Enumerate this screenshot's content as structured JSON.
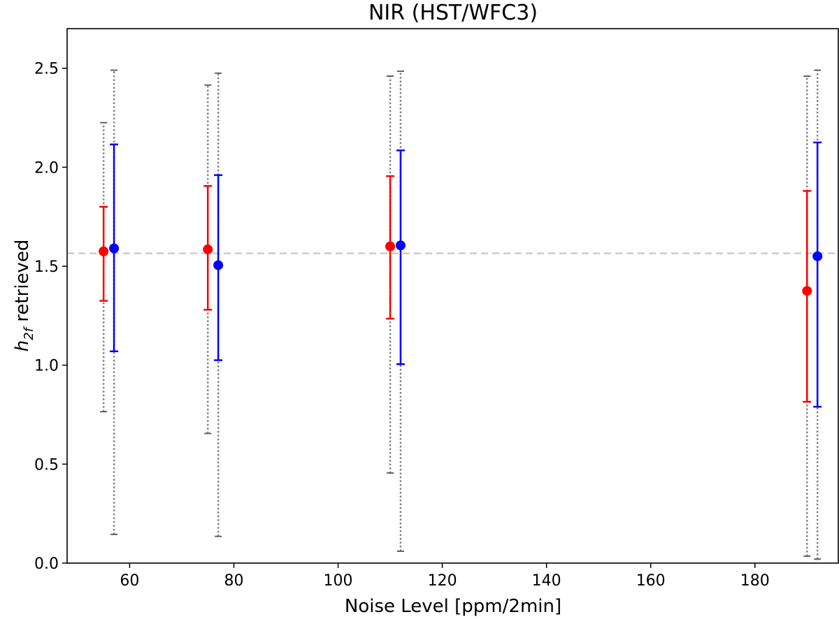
{
  "chart_data": {
    "type": "errorbar",
    "title": "NIR (HST/WFC3)",
    "xlabel": "Noise Level [ppm/2min]",
    "ylabel_main": "h",
    "ylabel_sub": "2f",
    "ylabel_rest": " retrieved",
    "xlim": [
      48,
      196
    ],
    "ylim": [
      0.0,
      2.7
    ],
    "xticks": [
      60,
      80,
      100,
      120,
      140,
      160,
      180
    ],
    "xtick_labels": [
      "60",
      "80",
      "100",
      "120",
      "140",
      "160",
      "180"
    ],
    "yticks": [
      0.0,
      0.5,
      1.0,
      1.5,
      2.0,
      2.5
    ],
    "ytick_labels": [
      "0.0",
      "0.5",
      "1.0",
      "1.5",
      "2.0",
      "2.5"
    ],
    "reference_line": {
      "y": 1.565,
      "color": "#cccccc",
      "style": "dashed"
    },
    "grid": false,
    "series": [
      {
        "color": "#ff0000",
        "points": [
          {
            "x": 55,
            "y": 1.575,
            "lo": 1.325,
            "hi": 1.8
          },
          {
            "x": 75,
            "y": 1.585,
            "lo": 1.28,
            "hi": 1.905
          },
          {
            "x": 110,
            "y": 1.6,
            "lo": 1.235,
            "hi": 1.955
          },
          {
            "x": 190,
            "y": 1.375,
            "lo": 0.815,
            "hi": 1.88
          }
        ]
      },
      {
        "color": "#0000ff",
        "points": [
          {
            "x": 57,
            "y": 1.59,
            "lo": 1.07,
            "hi": 2.115
          },
          {
            "x": 77,
            "y": 1.505,
            "lo": 1.025,
            "hi": 1.96
          },
          {
            "x": 112,
            "y": 1.605,
            "lo": 1.005,
            "hi": 2.085
          },
          {
            "x": 192,
            "y": 1.55,
            "lo": 0.79,
            "hi": 2.125
          }
        ]
      }
    ],
    "prior_ranges": {
      "color": "#808080",
      "style": "dotted",
      "ranges": [
        {
          "x": 55,
          "lo": 0.765,
          "hi": 2.225
        },
        {
          "x": 57,
          "lo": 0.145,
          "hi": 2.49
        },
        {
          "x": 75,
          "lo": 0.655,
          "hi": 2.415
        },
        {
          "x": 77,
          "lo": 0.135,
          "hi": 2.475
        },
        {
          "x": 110,
          "lo": 0.455,
          "hi": 2.46
        },
        {
          "x": 112,
          "lo": 0.06,
          "hi": 2.485
        },
        {
          "x": 190,
          "lo": 0.035,
          "hi": 2.46
        },
        {
          "x": 192,
          "lo": 0.02,
          "hi": 2.49
        }
      ]
    }
  }
}
